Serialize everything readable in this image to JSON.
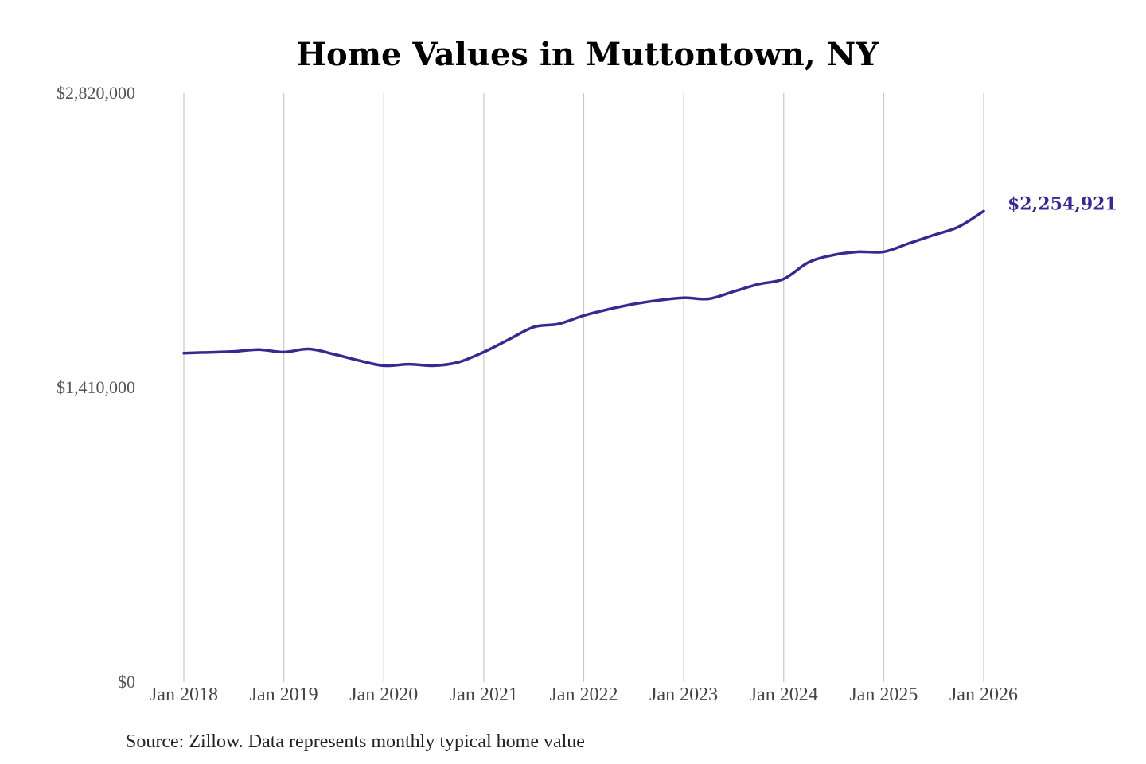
{
  "colors": {
    "series": "#37298f",
    "gridline": "#c8c8c8",
    "background": "#ffffff"
  },
  "chart_data": {
    "type": "line",
    "title": "Home Values in Muttontown, NY",
    "xlabel": "",
    "ylabel": "",
    "source": "Source: Zillow. Data represents monthly typical home value",
    "end_label": "$2,254,921",
    "grid": {
      "x": true,
      "y": false
    },
    "ylim": [
      0,
      2820000
    ],
    "y_ticks": [
      {
        "value": 0,
        "label": "$0"
      },
      {
        "value": 1410000,
        "label": "$1,410,000"
      },
      {
        "value": 2820000,
        "label": "$2,820,000"
      }
    ],
    "x_ticks": [
      {
        "date": "2018-01",
        "label": "Jan 2018"
      },
      {
        "date": "2019-01",
        "label": "Jan 2019"
      },
      {
        "date": "2020-01",
        "label": "Jan 2020"
      },
      {
        "date": "2021-01",
        "label": "Jan 2021"
      },
      {
        "date": "2022-01",
        "label": "Jan 2022"
      },
      {
        "date": "2023-01",
        "label": "Jan 2023"
      },
      {
        "date": "2024-01",
        "label": "Jan 2024"
      },
      {
        "date": "2025-01",
        "label": "Jan 2025"
      },
      {
        "date": "2026-01",
        "label": "Jan 2026"
      }
    ],
    "series": [
      {
        "points": [
          {
            "x": "2018-01",
            "y": 1575000
          },
          {
            "x": "2018-04",
            "y": 1579000
          },
          {
            "x": "2018-07",
            "y": 1583000
          },
          {
            "x": "2018-10",
            "y": 1592000
          },
          {
            "x": "2019-01",
            "y": 1580000
          },
          {
            "x": "2019-04",
            "y": 1595000
          },
          {
            "x": "2019-07",
            "y": 1570000
          },
          {
            "x": "2019-10",
            "y": 1540000
          },
          {
            "x": "2020-01",
            "y": 1515000
          },
          {
            "x": "2020-04",
            "y": 1522000
          },
          {
            "x": "2020-07",
            "y": 1515000
          },
          {
            "x": "2020-10",
            "y": 1532000
          },
          {
            "x": "2021-01",
            "y": 1580000
          },
          {
            "x": "2021-04",
            "y": 1640000
          },
          {
            "x": "2021-07",
            "y": 1700000
          },
          {
            "x": "2021-10",
            "y": 1715000
          },
          {
            "x": "2022-01",
            "y": 1755000
          },
          {
            "x": "2022-04",
            "y": 1785000
          },
          {
            "x": "2022-07",
            "y": 1810000
          },
          {
            "x": "2022-10",
            "y": 1828000
          },
          {
            "x": "2023-01",
            "y": 1840000
          },
          {
            "x": "2023-04",
            "y": 1835000
          },
          {
            "x": "2023-07",
            "y": 1870000
          },
          {
            "x": "2023-10",
            "y": 1905000
          },
          {
            "x": "2024-01",
            "y": 1930000
          },
          {
            "x": "2024-04",
            "y": 2010000
          },
          {
            "x": "2024-07",
            "y": 2045000
          },
          {
            "x": "2024-10",
            "y": 2060000
          },
          {
            "x": "2025-01",
            "y": 2060000
          },
          {
            "x": "2025-04",
            "y": 2100000
          },
          {
            "x": "2025-07",
            "y": 2140000
          },
          {
            "x": "2025-10",
            "y": 2180000
          },
          {
            "x": "2026-01",
            "y": 2254921
          }
        ]
      }
    ]
  }
}
